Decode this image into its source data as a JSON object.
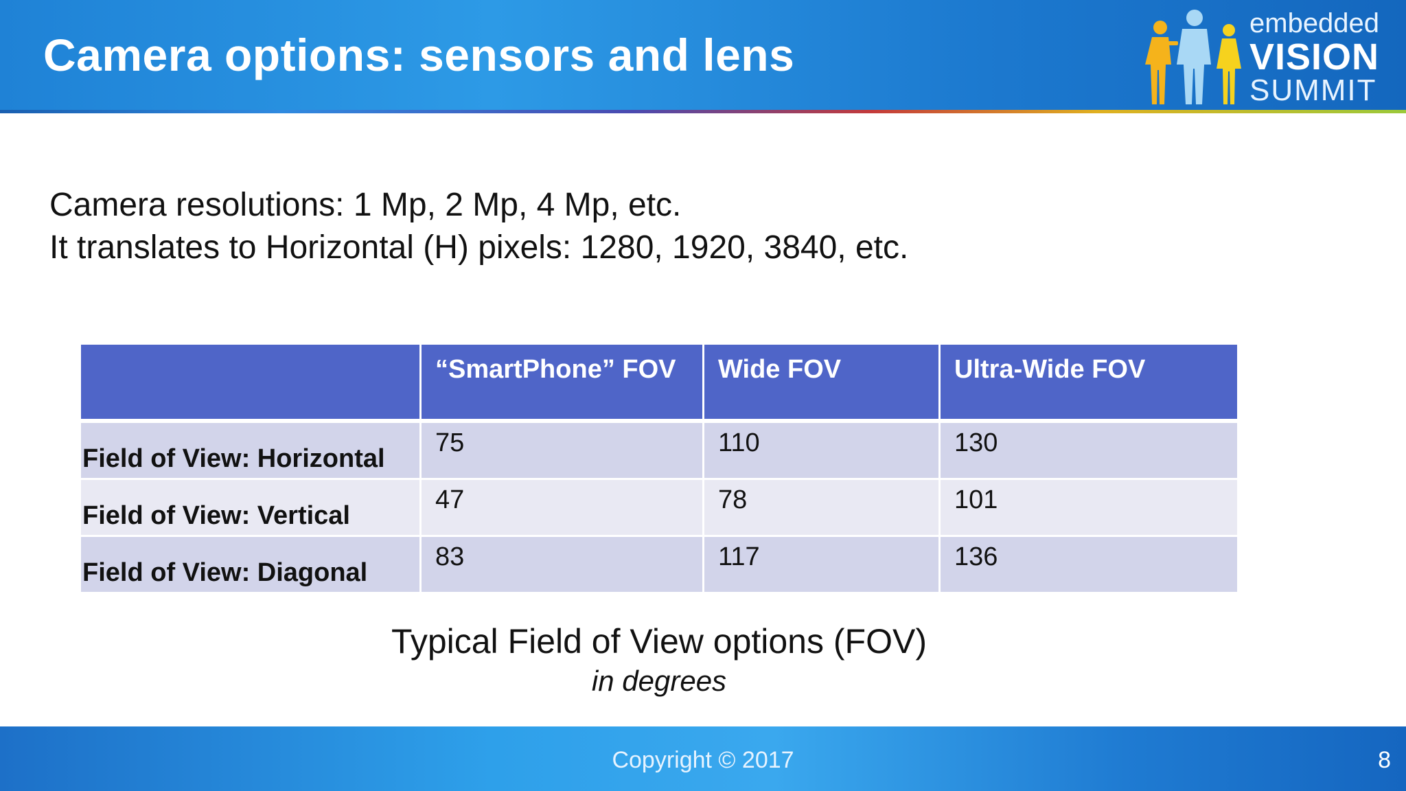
{
  "header": {
    "title": "Camera options: sensors and lens",
    "logo": {
      "line1": "embedded",
      "line2": "VISION",
      "line3": "SUMMIT",
      "icon": "people-figures-icon",
      "colors": {
        "figure_left": "#f5b31b",
        "figure_center": "#a9d8f5",
        "figure_right": "#f6d21e"
      }
    }
  },
  "intro": {
    "line1": "Camera resolutions: 1 Mp, 2 Mp, 4 Mp, etc.",
    "line2": "It translates to Horizontal (H) pixels: 1280, 1920, 3840, etc."
  },
  "table": {
    "headers": [
      "",
      "“SmartPhone” FOV",
      "Wide FOV",
      "Ultra-Wide FOV"
    ],
    "rows": [
      {
        "label": "Field of View: Horizontal",
        "values": [
          "75",
          "110",
          "130"
        ]
      },
      {
        "label": "Field of View: Vertical",
        "values": [
          "47",
          "78",
          "101"
        ]
      },
      {
        "label": "Field of View: Diagonal",
        "values": [
          "83",
          "117",
          "136"
        ]
      }
    ]
  },
  "caption": {
    "main": "Typical Field of View options (FOV)",
    "sub": "in degrees"
  },
  "footer": {
    "copyright": "Copyright © 2017",
    "page_number": "8"
  },
  "colors": {
    "header_blue": "#1f82d6",
    "table_header": "#4f65c8",
    "row_odd": "#d2d4ea",
    "row_even": "#e9e9f3"
  }
}
